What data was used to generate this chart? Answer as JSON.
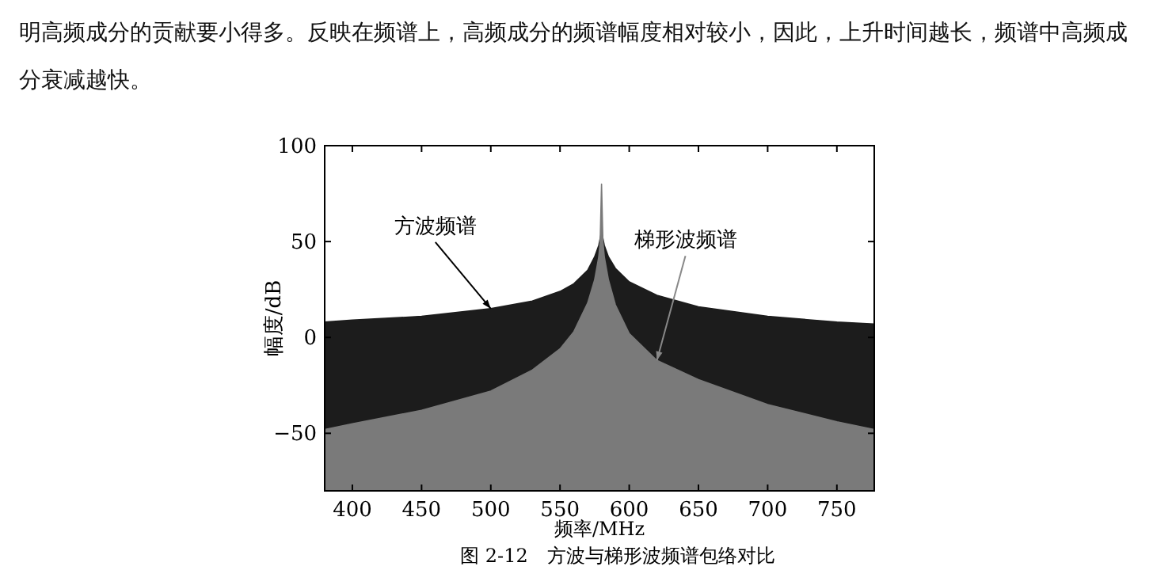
{
  "chart_data": {
    "type": "area",
    "title": "图 2-12　方波与梯形波频谱包络对比",
    "xlabel": "频率/MHz",
    "ylabel": "幅度/dB",
    "annotations": [
      "明高频成分的贡献要小得多。反映在频谱上，高频成分的频谱幅度相对较小，因此，上升时间越长，频谱中高频成分衰减越快。",
      {
        "text": "方波频谱",
        "x": 500,
        "y": 15
      },
      {
        "text": "梯形波频谱",
        "x": 620,
        "y": -12
      }
    ],
    "xlim": [
      380,
      777
    ],
    "ylim": [
      -80,
      100
    ],
    "xticks": [
      400,
      450,
      500,
      550,
      600,
      650,
      700,
      750
    ],
    "yticks": [
      -50,
      0,
      50,
      100
    ],
    "grid": false,
    "series": [
      {
        "color": "#1c1c1c",
        "x": [
          380,
          400,
          450,
          500,
          530,
          550,
          560,
          570,
          575,
          578,
          580,
          582,
          585,
          590,
          600,
          620,
          650,
          700,
          750,
          777
        ],
        "values": [
          8,
          9,
          11,
          15,
          19,
          24,
          28,
          35,
          42,
          48,
          55,
          48,
          42,
          36,
          29,
          22,
          16,
          11,
          8,
          7
        ]
      },
      {
        "color": "#7a7a7a",
        "x": [
          380,
          400,
          450,
          500,
          530,
          550,
          560,
          570,
          575,
          578,
          579,
          580,
          581,
          582,
          585,
          590,
          600,
          620,
          650,
          700,
          750,
          777
        ],
        "values": [
          -48,
          -45,
          -38,
          -28,
          -17,
          -6,
          3,
          18,
          30,
          42,
          50,
          80,
          50,
          42,
          30,
          17,
          2,
          -12,
          -22,
          -35,
          -44,
          -48
        ]
      }
    ]
  }
}
